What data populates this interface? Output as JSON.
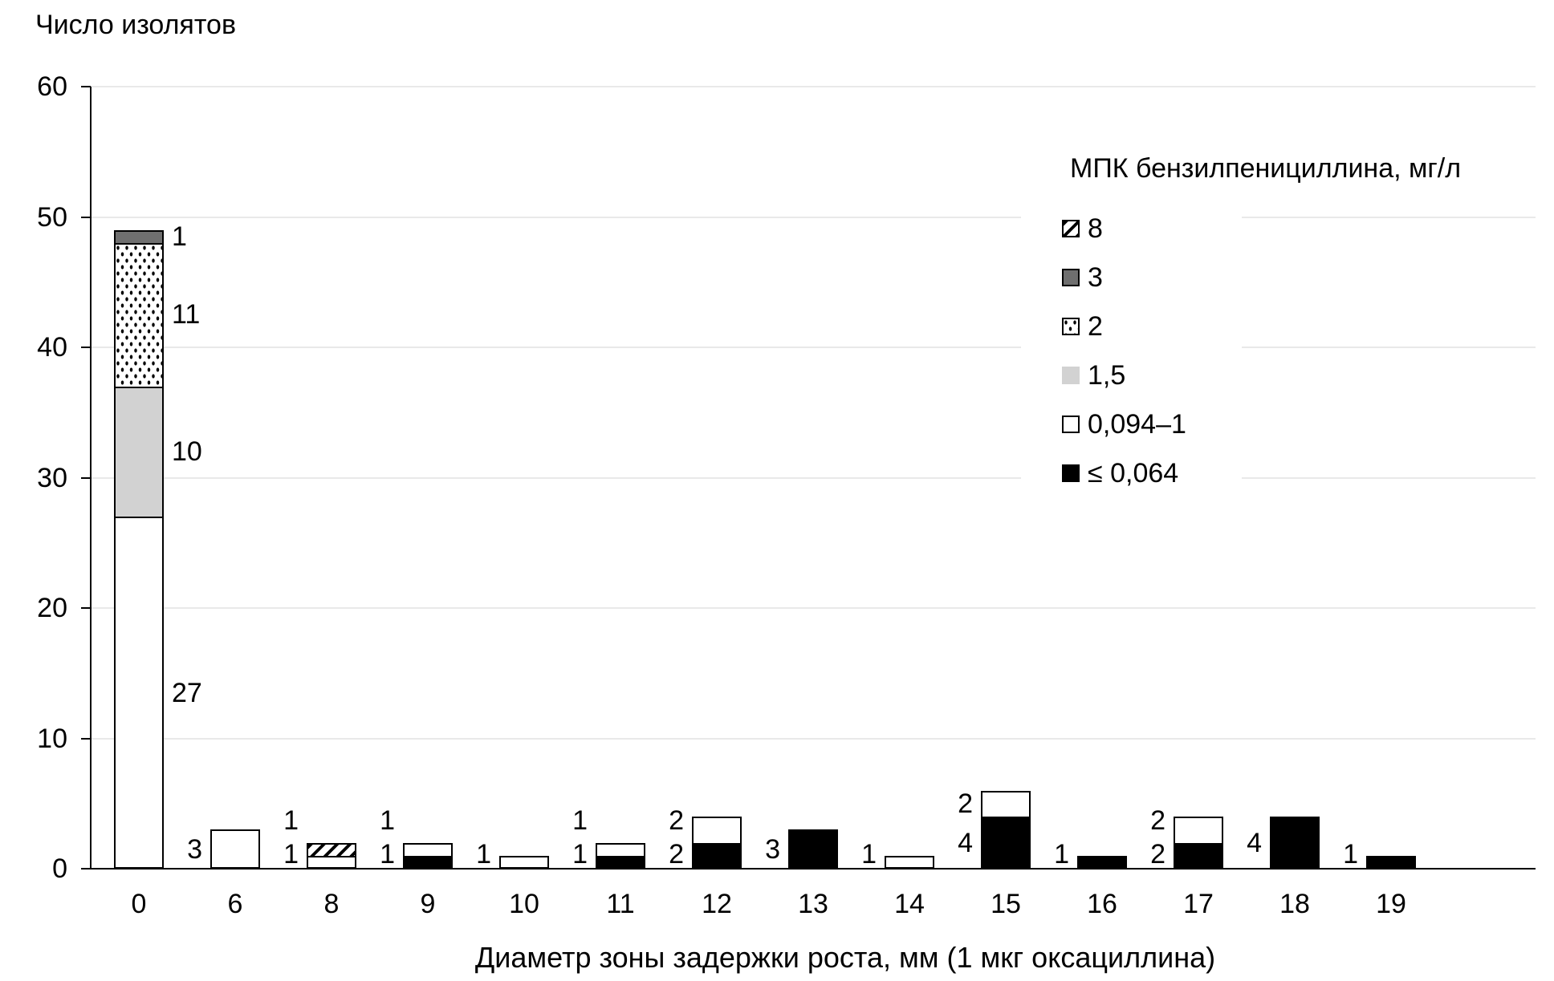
{
  "chart_data": {
    "type": "bar",
    "subtype": "stacked-vertical",
    "y_axis_title": "Число изолятов",
    "x_axis_title": "Диаметр зоны задержки роста, мм (1 мкг оксациллина)",
    "legend_title": "МПК бензилпенициллина, мг/л",
    "legend_position": "right-inside",
    "grid": "horizontal",
    "ylim": [
      0,
      60
    ],
    "y_ticks": [
      0,
      10,
      20,
      30,
      40,
      50,
      60
    ],
    "categories": [
      "0",
      "6",
      "8",
      "9",
      "10",
      "11",
      "12",
      "13",
      "14",
      "15",
      "16",
      "17",
      "18",
      "19"
    ],
    "series": [
      {
        "key": "mic8",
        "label": "8",
        "pattern": "hatch"
      },
      {
        "key": "mic3",
        "label": "3",
        "pattern": "darkgray"
      },
      {
        "key": "mic2",
        "label": "2",
        "pattern": "dotted"
      },
      {
        "key": "mic15",
        "label": "1,5",
        "pattern": "lightgray"
      },
      {
        "key": "mic0094",
        "label": "0,094–1",
        "pattern": "white"
      },
      {
        "key": "mic0064",
        "label": "≤ 0,064",
        "pattern": "black"
      }
    ],
    "bars": [
      {
        "category": "0",
        "label_side": "right",
        "segments": [
          {
            "series": "mic0094",
            "value": 27
          },
          {
            "series": "mic15",
            "value": 10
          },
          {
            "series": "mic2",
            "value": 11
          },
          {
            "series": "mic3",
            "value": 1
          }
        ]
      },
      {
        "category": "6",
        "label_side": "left",
        "segments": [
          {
            "series": "mic0094",
            "value": 3
          }
        ]
      },
      {
        "category": "8",
        "label_side": "left",
        "segments": [
          {
            "series": "mic0094",
            "value": 1
          },
          {
            "series": "mic8",
            "value": 1
          }
        ]
      },
      {
        "category": "9",
        "label_side": "left",
        "segments": [
          {
            "series": "mic0064",
            "value": 1
          },
          {
            "series": "mic0094",
            "value": 1
          }
        ]
      },
      {
        "category": "10",
        "label_side": "left",
        "segments": [
          {
            "series": "mic0094",
            "value": 1
          }
        ]
      },
      {
        "category": "11",
        "label_side": "left",
        "segments": [
          {
            "series": "mic0064",
            "value": 1
          },
          {
            "series": "mic0094",
            "value": 1
          }
        ]
      },
      {
        "category": "12",
        "label_side": "left",
        "segments": [
          {
            "series": "mic0064",
            "value": 2
          },
          {
            "series": "mic0094",
            "value": 2
          }
        ]
      },
      {
        "category": "13",
        "label_side": "left",
        "segments": [
          {
            "series": "mic0064",
            "value": 3
          }
        ]
      },
      {
        "category": "14",
        "label_side": "left",
        "segments": [
          {
            "series": "mic0094",
            "value": 1
          }
        ]
      },
      {
        "category": "15",
        "label_side": "left",
        "segments": [
          {
            "series": "mic0064",
            "value": 4
          },
          {
            "series": "mic0094",
            "value": 2
          }
        ]
      },
      {
        "category": "16",
        "label_side": "left",
        "segments": [
          {
            "series": "mic0064",
            "value": 1
          }
        ]
      },
      {
        "category": "17",
        "label_side": "left",
        "segments": [
          {
            "series": "mic0064",
            "value": 2
          },
          {
            "series": "mic0094",
            "value": 2
          }
        ]
      },
      {
        "category": "18",
        "label_side": "left",
        "segments": [
          {
            "series": "mic0064",
            "value": 4
          }
        ]
      },
      {
        "category": "19",
        "label_side": "left",
        "segments": [
          {
            "series": "mic0064",
            "value": 1
          }
        ]
      }
    ],
    "colors": {
      "white": "#ffffff",
      "black": "#000000",
      "darkgray": "#6f6f6f",
      "lightgray": "#d2d2d2",
      "pattern_foreground": "#000000",
      "gridline": "#e9e9e9",
      "axis": "#000000",
      "text": "#000000",
      "background": "#ffffff"
    }
  }
}
